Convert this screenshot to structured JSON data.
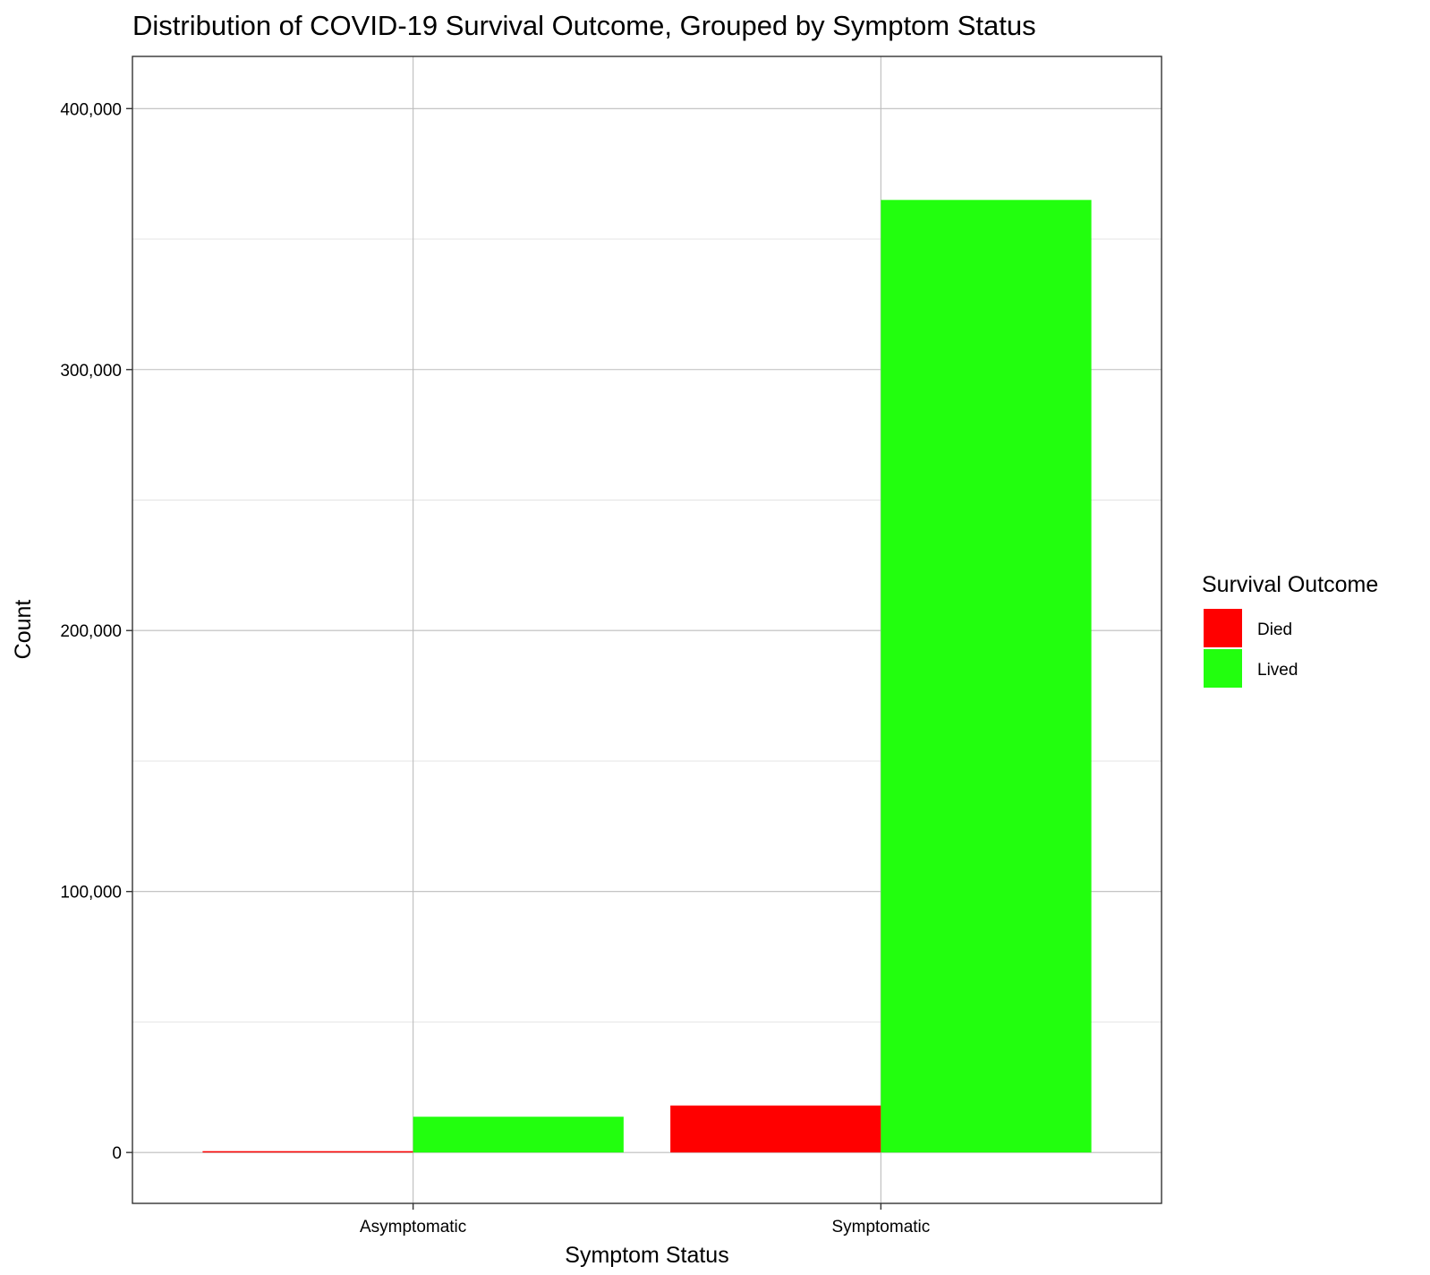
{
  "chart_data": {
    "type": "bar",
    "title": "Distribution of COVID-19 Survival Outcome, Grouped by Symptom Status",
    "xlabel": "Symptom Status",
    "ylabel": "Count",
    "categories": [
      "Asymptomatic",
      "Symptomatic"
    ],
    "series": [
      {
        "name": "Died",
        "color": "#ff0000",
        "values": [
          500,
          18000
        ]
      },
      {
        "name": "Lived",
        "color": "#22ff0e",
        "values": [
          13700,
          365000
        ]
      }
    ],
    "yticks": [
      0,
      100000,
      200000,
      300000,
      400000
    ],
    "ytick_labels": [
      "0",
      "100,000",
      "200,000",
      "300,000",
      "400,000"
    ],
    "ylim": [
      -19500,
      420000
    ],
    "grid": true,
    "legend": {
      "title": "Survival Outcome",
      "position": "right"
    }
  }
}
